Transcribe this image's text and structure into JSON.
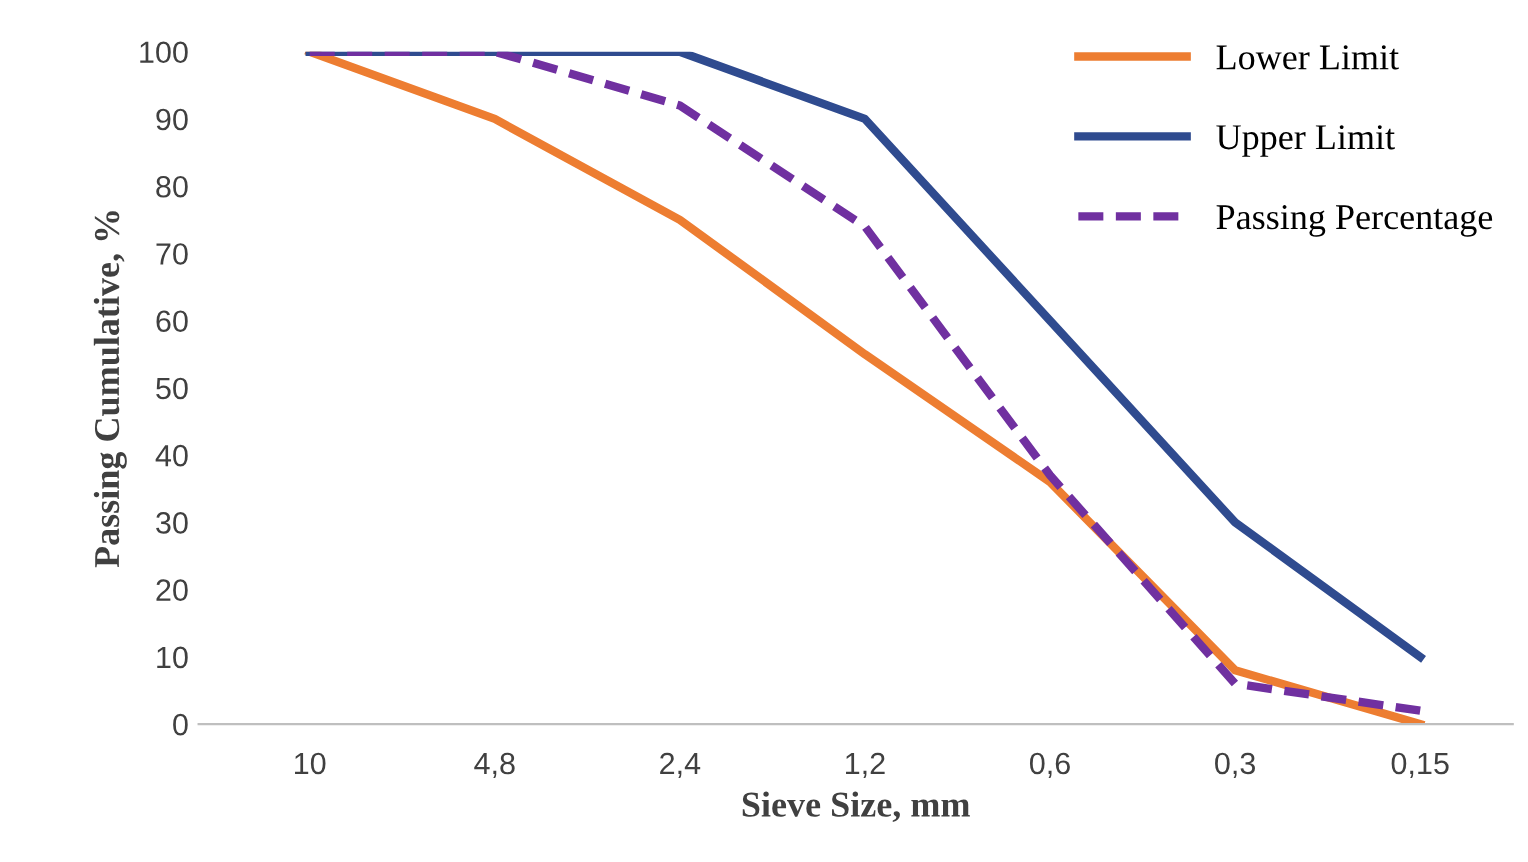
{
  "chart_data": {
    "type": "line",
    "xlabel": "Sieve Size, mm",
    "ylabel": "Passing Cumulative, %",
    "categories": [
      "10",
      "4,8",
      "2,4",
      "1,2",
      "0,6",
      "0,3",
      "0,15"
    ],
    "series": [
      {
        "name": "Lower Limit",
        "color": "#ed7d31",
        "values": [
          100,
          90,
          75,
          55,
          36,
          8,
          0
        ],
        "line_style": "solid"
      },
      {
        "name": "Upper Limit",
        "color": "#2f4b8f",
        "values": [
          100,
          100,
          100,
          90,
          60,
          30,
          10
        ],
        "line_style": "solid"
      },
      {
        "name": "Passing Percentage",
        "color": "#7030a0",
        "values": [
          100,
          100,
          92,
          74,
          37,
          6,
          2
        ],
        "line_style": "dashed"
      }
    ],
    "ylim": [
      0,
      100
    ],
    "yticks": [
      0,
      10,
      20,
      30,
      40,
      50,
      60,
      70,
      80,
      90,
      100
    ],
    "grid": false,
    "legend": "top right",
    "marker": "none"
  }
}
